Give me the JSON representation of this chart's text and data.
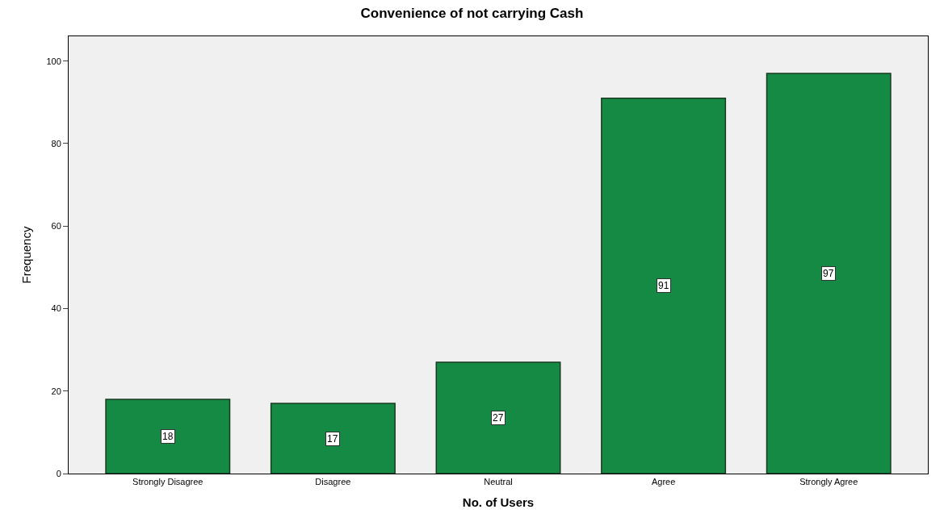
{
  "chart_data": {
    "type": "bar",
    "title": "Convenience of not carrying Cash",
    "xlabel": "No. of Users",
    "ylabel": "Frequency",
    "categories": [
      "Strongly Disagree",
      "Disagree",
      "Neutral",
      "Agree",
      "Strongly Agree"
    ],
    "values": [
      18,
      17,
      27,
      91,
      97
    ],
    "color": "#158a45",
    "ylim": [
      0,
      106
    ],
    "yticks": [
      0,
      20,
      40,
      60,
      80,
      100
    ],
    "grid": false,
    "data_labels": true,
    "legend": false
  }
}
